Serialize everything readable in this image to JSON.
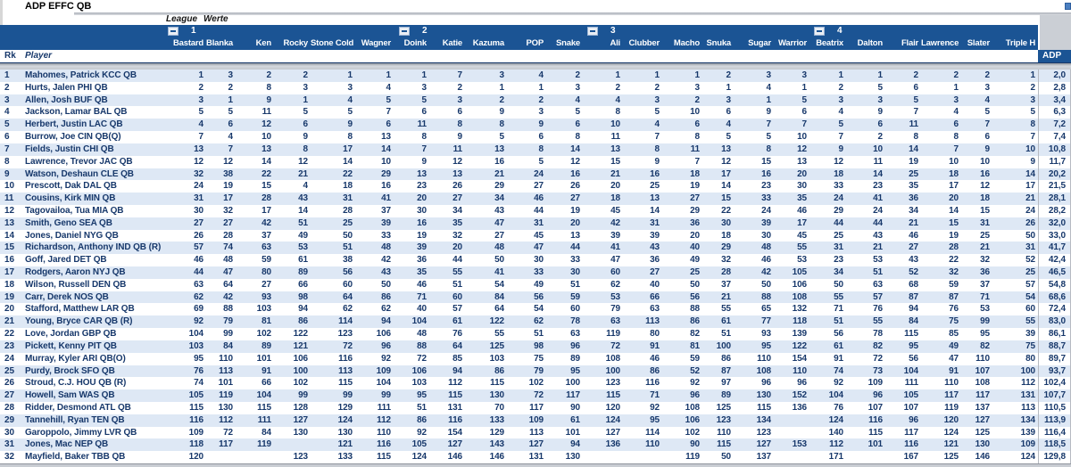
{
  "title": "ADP EFFC QB",
  "header": {
    "league_label": "League",
    "werte_label": "Werte",
    "groups": [
      "1",
      "2",
      "3",
      "4"
    ],
    "drafters": [
      "Bastard",
      "Blanka",
      "Ken",
      "Rocky",
      "Stone Cold",
      "Wagner",
      "Doink",
      "Katie",
      "Kazuma",
      "POP",
      "Snake",
      "Ali",
      "Clubber",
      "Macho",
      "Snuka",
      "Sugar",
      "Warrior",
      "Beatrix",
      "Dalton",
      "Flair",
      "Lawrence",
      "Slater",
      "Triple H"
    ],
    "rk_label": "Rk",
    "player_label": "Player",
    "adp_label": "ADP"
  },
  "colors": {
    "header_blue": "#1B5494",
    "row_stripe_blue": "#DEE8F5",
    "text_navy": "#17386B",
    "divider_silver": "#C9CDD3"
  },
  "players": [
    {
      "rk": "1",
      "name": "Mahomes, Patrick KCC QB",
      "picks": [
        "1",
        "3",
        "2",
        "2",
        "1",
        "1",
        "1",
        "7",
        "3",
        "4",
        "2",
        "1",
        "1",
        "1",
        "2",
        "3",
        "3",
        "1",
        "1",
        "2",
        "2",
        "2",
        "1"
      ],
      "adp": "2,0"
    },
    {
      "rk": "2",
      "name": "Hurts, Jalen PHI QB",
      "picks": [
        "2",
        "2",
        "8",
        "3",
        "3",
        "4",
        "3",
        "2",
        "1",
        "1",
        "3",
        "2",
        "2",
        "3",
        "1",
        "4",
        "1",
        "2",
        "5",
        "6",
        "1",
        "3",
        "2"
      ],
      "adp": "2,8"
    },
    {
      "rk": "3",
      "name": "Allen, Josh BUF QB",
      "picks": [
        "3",
        "1",
        "9",
        "1",
        "4",
        "5",
        "5",
        "3",
        "2",
        "2",
        "4",
        "4",
        "3",
        "2",
        "3",
        "1",
        "5",
        "3",
        "3",
        "5",
        "3",
        "4",
        "3"
      ],
      "adp": "3,4"
    },
    {
      "rk": "4",
      "name": "Jackson, Lamar BAL QB",
      "picks": [
        "5",
        "5",
        "11",
        "5",
        "5",
        "7",
        "6",
        "6",
        "9",
        "3",
        "5",
        "8",
        "5",
        "10",
        "6",
        "9",
        "6",
        "4",
        "9",
        "7",
        "4",
        "5",
        "5"
      ],
      "adp": "6,3"
    },
    {
      "rk": "5",
      "name": "Herbert, Justin LAC QB",
      "picks": [
        "4",
        "6",
        "12",
        "6",
        "9",
        "6",
        "11",
        "8",
        "8",
        "9",
        "6",
        "10",
        "4",
        "6",
        "4",
        "7",
        "7",
        "5",
        "6",
        "11",
        "6",
        "7",
        "8"
      ],
      "adp": "7,2"
    },
    {
      "rk": "6",
      "name": "Burrow, Joe CIN QB(Q)",
      "picks": [
        "7",
        "4",
        "10",
        "9",
        "8",
        "13",
        "8",
        "9",
        "5",
        "6",
        "8",
        "11",
        "7",
        "8",
        "5",
        "5",
        "10",
        "7",
        "2",
        "8",
        "8",
        "6",
        "7"
      ],
      "adp": "7,4"
    },
    {
      "rk": "7",
      "name": "Fields, Justin CHI QB",
      "picks": [
        "13",
        "7",
        "13",
        "8",
        "17",
        "14",
        "7",
        "11",
        "13",
        "8",
        "14",
        "13",
        "8",
        "11",
        "13",
        "8",
        "12",
        "9",
        "10",
        "14",
        "7",
        "9",
        "10"
      ],
      "adp": "10,8"
    },
    {
      "rk": "8",
      "name": "Lawrence, Trevor JAC QB",
      "picks": [
        "12",
        "12",
        "14",
        "12",
        "14",
        "10",
        "9",
        "12",
        "16",
        "5",
        "12",
        "15",
        "9",
        "7",
        "12",
        "15",
        "13",
        "12",
        "11",
        "19",
        "10",
        "10",
        "9"
      ],
      "adp": "11,7"
    },
    {
      "rk": "9",
      "name": "Watson, Deshaun CLE QB",
      "picks": [
        "32",
        "38",
        "22",
        "21",
        "22",
        "29",
        "13",
        "13",
        "21",
        "24",
        "16",
        "21",
        "16",
        "18",
        "17",
        "16",
        "20",
        "18",
        "14",
        "25",
        "18",
        "16",
        "14"
      ],
      "adp": "20,2"
    },
    {
      "rk": "10",
      "name": "Prescott, Dak DAL QB",
      "picks": [
        "24",
        "19",
        "15",
        "4",
        "18",
        "16",
        "23",
        "26",
        "29",
        "27",
        "26",
        "20",
        "25",
        "19",
        "14",
        "23",
        "30",
        "33",
        "23",
        "35",
        "17",
        "12",
        "17"
      ],
      "adp": "21,5"
    },
    {
      "rk": "11",
      "name": "Cousins, Kirk MIN QB",
      "picks": [
        "31",
        "17",
        "28",
        "43",
        "31",
        "41",
        "20",
        "27",
        "34",
        "46",
        "27",
        "18",
        "13",
        "27",
        "15",
        "33",
        "35",
        "24",
        "41",
        "36",
        "20",
        "18",
        "21"
      ],
      "adp": "28,1"
    },
    {
      "rk": "12",
      "name": "Tagovailoa, Tua MIA QB",
      "picks": [
        "30",
        "32",
        "17",
        "14",
        "28",
        "37",
        "30",
        "34",
        "43",
        "44",
        "19",
        "45",
        "14",
        "29",
        "22",
        "24",
        "46",
        "29",
        "24",
        "34",
        "14",
        "15",
        "24"
      ],
      "adp": "28,2"
    },
    {
      "rk": "13",
      "name": "Smith, Geno SEA QB",
      "picks": [
        "27",
        "27",
        "42",
        "51",
        "25",
        "39",
        "16",
        "35",
        "47",
        "31",
        "20",
        "42",
        "31",
        "36",
        "30",
        "39",
        "17",
        "44",
        "44",
        "21",
        "15",
        "31",
        "26"
      ],
      "adp": "32,0"
    },
    {
      "rk": "14",
      "name": "Jones, Daniel NYG QB",
      "picks": [
        "26",
        "28",
        "37",
        "49",
        "50",
        "33",
        "19",
        "32",
        "27",
        "45",
        "13",
        "39",
        "39",
        "20",
        "18",
        "30",
        "45",
        "25",
        "43",
        "46",
        "19",
        "25",
        "50"
      ],
      "adp": "33,0"
    },
    {
      "rk": "15",
      "name": "Richardson, Anthony IND QB (R)",
      "picks": [
        "57",
        "74",
        "63",
        "53",
        "51",
        "48",
        "39",
        "20",
        "48",
        "47",
        "44",
        "41",
        "43",
        "40",
        "29",
        "48",
        "55",
        "31",
        "21",
        "27",
        "28",
        "21",
        "31"
      ],
      "adp": "41,7"
    },
    {
      "rk": "16",
      "name": "Goff, Jared DET QB",
      "picks": [
        "46",
        "48",
        "59",
        "61",
        "38",
        "42",
        "36",
        "44",
        "50",
        "30",
        "33",
        "47",
        "36",
        "49",
        "32",
        "46",
        "53",
        "23",
        "53",
        "43",
        "22",
        "32",
        "52"
      ],
      "adp": "42,4"
    },
    {
      "rk": "17",
      "name": "Rodgers, Aaron NYJ QB",
      "picks": [
        "44",
        "47",
        "80",
        "89",
        "56",
        "43",
        "35",
        "55",
        "41",
        "33",
        "30",
        "60",
        "27",
        "25",
        "28",
        "42",
        "105",
        "34",
        "51",
        "52",
        "32",
        "36",
        "25"
      ],
      "adp": "46,5"
    },
    {
      "rk": "18",
      "name": "Wilson, Russell DEN QB",
      "picks": [
        "63",
        "64",
        "27",
        "66",
        "60",
        "50",
        "46",
        "51",
        "54",
        "49",
        "51",
        "62",
        "40",
        "50",
        "37",
        "50",
        "106",
        "50",
        "63",
        "68",
        "59",
        "37",
        "57"
      ],
      "adp": "54,8"
    },
    {
      "rk": "19",
      "name": "Carr, Derek NOS QB",
      "picks": [
        "62",
        "42",
        "93",
        "98",
        "64",
        "86",
        "71",
        "60",
        "84",
        "56",
        "59",
        "53",
        "66",
        "56",
        "21",
        "88",
        "108",
        "55",
        "57",
        "87",
        "87",
        "71",
        "54"
      ],
      "adp": "68,6"
    },
    {
      "rk": "20",
      "name": "Stafford, Matthew LAR QB",
      "picks": [
        "69",
        "88",
        "103",
        "94",
        "62",
        "62",
        "40",
        "57",
        "64",
        "54",
        "60",
        "79",
        "63",
        "88",
        "55",
        "65",
        "132",
        "71",
        "76",
        "94",
        "76",
        "53",
        "60"
      ],
      "adp": "72,4"
    },
    {
      "rk": "21",
      "name": "Young, Bryce CAR QB (R)",
      "picks": [
        "92",
        "79",
        "81",
        "86",
        "114",
        "94",
        "104",
        "61",
        "122",
        "62",
        "78",
        "63",
        "113",
        "86",
        "61",
        "77",
        "118",
        "51",
        "55",
        "84",
        "75",
        "99",
        "55"
      ],
      "adp": "83,0"
    },
    {
      "rk": "22",
      "name": "Love, Jordan GBP QB",
      "picks": [
        "104",
        "99",
        "102",
        "122",
        "123",
        "106",
        "48",
        "76",
        "55",
        "51",
        "63",
        "119",
        "80",
        "82",
        "51",
        "93",
        "139",
        "56",
        "78",
        "115",
        "85",
        "95",
        "39"
      ],
      "adp": "86,1"
    },
    {
      "rk": "23",
      "name": "Pickett, Kenny PIT QB",
      "picks": [
        "103",
        "84",
        "89",
        "121",
        "72",
        "96",
        "88",
        "64",
        "125",
        "98",
        "96",
        "72",
        "91",
        "81",
        "100",
        "95",
        "122",
        "61",
        "82",
        "95",
        "49",
        "82",
        "75"
      ],
      "adp": "88,7"
    },
    {
      "rk": "24",
      "name": "Murray, Kyler ARI QB(O)",
      "picks": [
        "95",
        "110",
        "101",
        "106",
        "116",
        "92",
        "72",
        "85",
        "103",
        "75",
        "89",
        "108",
        "46",
        "59",
        "86",
        "110",
        "154",
        "91",
        "72",
        "56",
        "47",
        "110",
        "80"
      ],
      "adp": "89,7"
    },
    {
      "rk": "25",
      "name": "Purdy, Brock SFO QB",
      "picks": [
        "76",
        "113",
        "91",
        "100",
        "113",
        "109",
        "106",
        "94",
        "86",
        "79",
        "95",
        "100",
        "86",
        "52",
        "87",
        "108",
        "110",
        "74",
        "73",
        "104",
        "91",
        "107",
        "100"
      ],
      "adp": "93,7"
    },
    {
      "rk": "26",
      "name": "Stroud, C.J. HOU QB (R)",
      "picks": [
        "74",
        "101",
        "66",
        "102",
        "115",
        "104",
        "103",
        "112",
        "115",
        "102",
        "100",
        "123",
        "116",
        "92",
        "97",
        "96",
        "96",
        "92",
        "109",
        "111",
        "110",
        "108",
        "112"
      ],
      "adp": "102,4"
    },
    {
      "rk": "27",
      "name": "Howell, Sam WAS QB",
      "picks": [
        "105",
        "119",
        "104",
        "99",
        "99",
        "99",
        "95",
        "115",
        "130",
        "72",
        "117",
        "115",
        "71",
        "96",
        "89",
        "130",
        "152",
        "104",
        "96",
        "105",
        "117",
        "117",
        "131"
      ],
      "adp": "107,7"
    },
    {
      "rk": "28",
      "name": "Ridder, Desmond ATL QB",
      "picks": [
        "115",
        "130",
        "115",
        "128",
        "129",
        "111",
        "51",
        "131",
        "70",
        "117",
        "90",
        "120",
        "92",
        "108",
        "125",
        "115",
        "136",
        "76",
        "107",
        "107",
        "119",
        "137",
        "113"
      ],
      "adp": "110,5"
    },
    {
      "rk": "29",
      "name": "Tannehill, Ryan TEN QB",
      "picks": [
        "116",
        "112",
        "111",
        "127",
        "124",
        "112",
        "86",
        "116",
        "133",
        "109",
        "61",
        "124",
        "95",
        "106",
        "123",
        "134",
        "",
        "124",
        "116",
        "96",
        "120",
        "127",
        "134"
      ],
      "adp": "113,9"
    },
    {
      "rk": "30",
      "name": "Garoppolo, Jimmy LVR QB",
      "picks": [
        "109",
        "72",
        "84",
        "130",
        "130",
        "110",
        "92",
        "154",
        "129",
        "113",
        "101",
        "127",
        "114",
        "102",
        "110",
        "123",
        "",
        "140",
        "115",
        "117",
        "124",
        "125",
        "139"
      ],
      "adp": "116,4"
    },
    {
      "rk": "31",
      "name": "Jones, Mac NEP QB",
      "picks": [
        "118",
        "117",
        "119",
        "",
        "121",
        "116",
        "105",
        "127",
        "143",
        "127",
        "94",
        "136",
        "110",
        "90",
        "115",
        "127",
        "153",
        "112",
        "101",
        "116",
        "121",
        "130",
        "109"
      ],
      "adp": "118,5"
    },
    {
      "rk": "32",
      "name": "Mayfield, Baker TBB QB",
      "picks": [
        "120",
        "",
        "",
        "123",
        "133",
        "115",
        "124",
        "146",
        "146",
        "131",
        "130",
        "",
        "",
        "119",
        "50",
        "137",
        "",
        "171",
        "",
        "167",
        "125",
        "146",
        "124"
      ],
      "adp": "129,8"
    }
  ]
}
